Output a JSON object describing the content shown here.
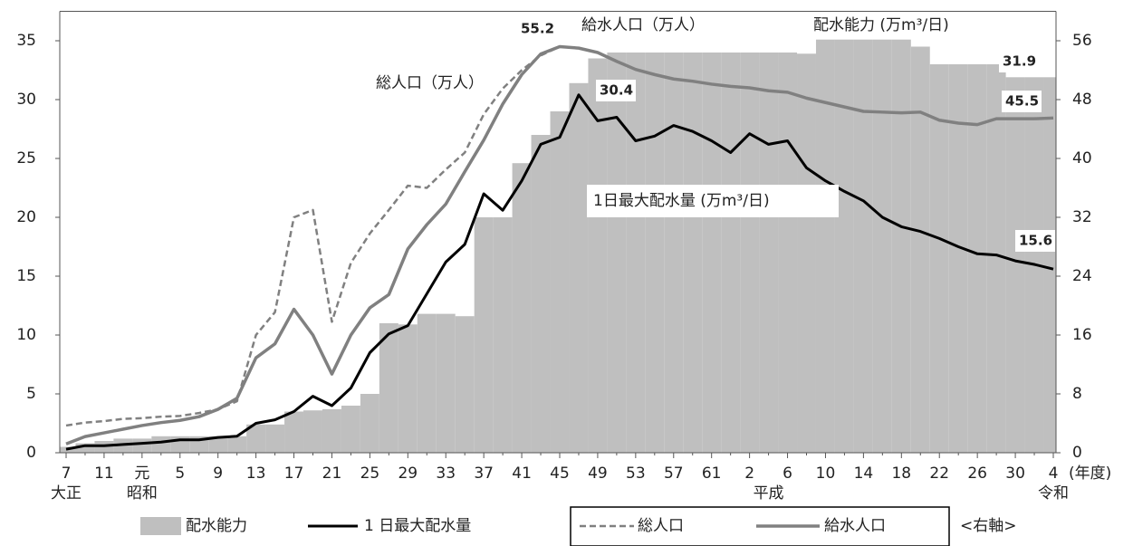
{
  "chart_data": {
    "type": "combo",
    "categories": [
      "7",
      null,
      "11",
      null,
      "元",
      null,
      "5",
      null,
      "9",
      null,
      "13",
      null,
      "17",
      null,
      "21",
      null,
      "25",
      null,
      "29",
      null,
      "33",
      null,
      "37",
      null,
      "41",
      null,
      "45",
      null,
      "49",
      null,
      "53",
      null,
      "57",
      null,
      "61",
      null,
      "2",
      null,
      "6",
      null,
      "10",
      null,
      "14",
      null,
      "18",
      null,
      "22",
      null,
      "26",
      null,
      "30",
      null,
      "4"
    ],
    "era_labels": [
      "大正",
      "昭和",
      "平成",
      "令和"
    ],
    "x_label": "(年度)",
    "ylim": [
      0,
      37.5
    ],
    "yticks": [
      0,
      5,
      10,
      15,
      20,
      25,
      30,
      35
    ],
    "y2lim": [
      0,
      60
    ],
    "y2ticks": [
      0,
      8,
      16,
      24,
      32,
      40,
      48,
      56
    ],
    "series": [
      {
        "name": "配水能力",
        "kind": "area",
        "color": "#bfbfbf",
        "values": [
          0.5,
          0.8,
          1.0,
          1.2,
          1.2,
          1.4,
          1.4,
          1.4,
          1.4,
          1.4,
          2.4,
          2.4,
          3.5,
          3.6,
          3.7,
          4.0,
          5.0,
          11.0,
          10.9,
          11.8,
          11.8,
          11.6,
          20.0,
          20.0,
          24.6,
          27.0,
          29.0,
          31.4,
          33.5,
          34.0,
          34.0,
          34.0,
          34.0,
          34.0,
          34.0,
          34.0,
          34.0,
          34.0,
          34.0,
          33.9,
          35.1,
          35.1,
          35.1,
          35.1,
          35.1,
          34.5,
          33.0,
          33.0,
          33.0,
          33.0,
          31.9,
          31.9,
          31.9
        ]
      },
      {
        "name": "1 日最大配水量",
        "kind": "line",
        "color": "#000000",
        "values": [
          0.3,
          0.6,
          0.6,
          0.7,
          0.8,
          0.9,
          1.1,
          1.1,
          1.3,
          1.4,
          2.5,
          2.8,
          3.5,
          4.8,
          4.0,
          5.5,
          8.5,
          10.1,
          10.8,
          13.5,
          16.2,
          17.7,
          22.0,
          20.6,
          23.1,
          26.2,
          26.8,
          30.4,
          28.2,
          28.5,
          26.5,
          26.9,
          27.8,
          27.3,
          26.5,
          25.5,
          27.1,
          26.2,
          26.5,
          24.2,
          23.1,
          22.2,
          21.4,
          20.0,
          19.2,
          18.8,
          18.2,
          17.5,
          16.9,
          16.8,
          16.3,
          16.0,
          15.6
        ]
      },
      {
        "name": "総人口",
        "kind": "line",
        "dash": true,
        "axis": "y2",
        "color": "#808080",
        "values": [
          3.7,
          4.1,
          4.3,
          4.6,
          4.7,
          4.9,
          5.0,
          5.4,
          5.9,
          7.0,
          16.0,
          19.1,
          32.0,
          33.0,
          17.8,
          25.8,
          29.8,
          33.0,
          36.3,
          36.0,
          38.5,
          40.8,
          46.0,
          49.5,
          52.0,
          54.0,
          55.2,
          55.0,
          54.4,
          53.2,
          52.1,
          51.4,
          50.8,
          50.5,
          50.1,
          49.8,
          49.6,
          49.2,
          49.0,
          48.2,
          47.6,
          47.0,
          46.4,
          46.3,
          46.2,
          46.3,
          45.2,
          44.8,
          44.6,
          45.4,
          45.4,
          45.4,
          45.5
        ]
      },
      {
        "name": "給水人口",
        "kind": "line",
        "axis": "y2",
        "color": "#808080",
        "values": [
          1.2,
          2.2,
          2.7,
          3.2,
          3.7,
          4.1,
          4.4,
          4.9,
          5.9,
          7.4,
          12.9,
          14.8,
          19.5,
          16.0,
          10.7,
          16.0,
          19.7,
          21.5,
          27.7,
          31.0,
          33.8,
          38.2,
          42.5,
          47.4,
          51.4,
          54.2,
          55.2,
          55.0,
          54.4,
          53.2,
          52.1,
          51.4,
          50.8,
          50.5,
          50.1,
          49.8,
          49.6,
          49.2,
          49.0,
          48.2,
          47.6,
          47.0,
          46.4,
          46.3,
          46.2,
          46.3,
          45.2,
          44.8,
          44.6,
          45.4,
          45.4,
          45.4,
          45.5
        ]
      }
    ],
    "annotations": [
      "給水人口（万人）",
      "配水能力 (万m³/日)",
      "総人口（万人）",
      "1日最大配水量 (万m³/日)"
    ],
    "legend_note": "<右軸>"
  }
}
